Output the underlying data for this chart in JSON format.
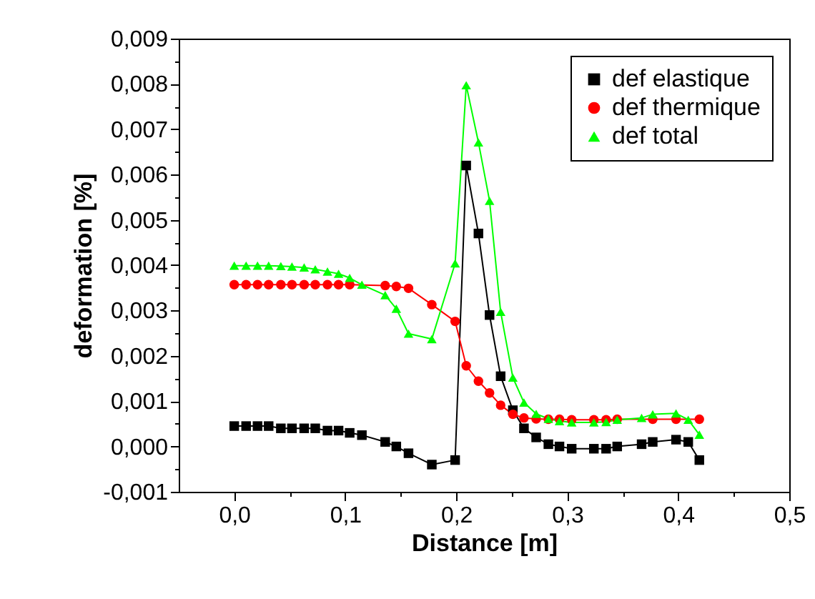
{
  "chart_data": {
    "type": "line",
    "xlabel": "Distance [m]",
    "ylabel": "deformation [%]",
    "xlim": [
      -0.05,
      0.5
    ],
    "ylim": [
      -0.001,
      0.009
    ],
    "xticks": [
      {
        "value": 0,
        "label": "0,0"
      },
      {
        "value": 0.05,
        "label": null
      },
      {
        "value": 0.1,
        "label": "0,1"
      },
      {
        "value": 0.15,
        "label": null
      },
      {
        "value": 0.2,
        "label": "0,2"
      },
      {
        "value": 0.25,
        "label": null
      },
      {
        "value": 0.3,
        "label": "0,3"
      },
      {
        "value": 0.35,
        "label": null
      },
      {
        "value": 0.4,
        "label": "0,4"
      },
      {
        "value": 0.45,
        "label": null
      },
      {
        "value": 0.5,
        "label": "0,5"
      }
    ],
    "yticks": [
      {
        "value": -0.001,
        "label": "-0,001"
      },
      {
        "value": -0.0005,
        "label": null
      },
      {
        "value": 0,
        "label": "0,000"
      },
      {
        "value": 0.0005,
        "label": null
      },
      {
        "value": 0.001,
        "label": "0,001"
      },
      {
        "value": 0.0015,
        "label": null
      },
      {
        "value": 0.002,
        "label": "0,002"
      },
      {
        "value": 0.0025,
        "label": null
      },
      {
        "value": 0.003,
        "label": "0,003"
      },
      {
        "value": 0.0035,
        "label": null
      },
      {
        "value": 0.004,
        "label": "0,004"
      },
      {
        "value": 0.0045,
        "label": null
      },
      {
        "value": 0.005,
        "label": "0,005"
      },
      {
        "value": 0.0055,
        "label": null
      },
      {
        "value": 0.006,
        "label": "0,006"
      },
      {
        "value": 0.0065,
        "label": null
      },
      {
        "value": 0.007,
        "label": "0,007"
      },
      {
        "value": 0.0075,
        "label": null
      },
      {
        "value": 0.008,
        "label": "0,008"
      },
      {
        "value": 0.0085,
        "label": null
      },
      {
        "value": 0.009,
        "label": "0,009"
      }
    ],
    "grid": false,
    "legend": "top right",
    "line_style": "solid",
    "series": [
      {
        "name": "def elastique",
        "color": "#000000",
        "marker": "square",
        "x": [
          0,
          0.0107,
          0.021,
          0.031,
          0.042,
          0.052,
          0.063,
          0.073,
          0.084,
          0.094,
          0.104,
          0.115,
          0.136,
          0.146,
          0.157,
          0.178,
          0.199,
          0.209,
          0.22,
          0.23,
          0.24,
          0.251,
          0.261,
          0.272,
          0.283,
          0.293,
          0.304,
          0.324,
          0.335,
          0.345,
          0.367,
          0.377,
          0.398,
          0.409,
          0.419
        ],
        "values": [
          0.00045,
          0.00045,
          0.00045,
          0.00045,
          0.0004,
          0.0004,
          0.0004,
          0.0004,
          0.00035,
          0.00035,
          0.0003,
          0.00025,
          0.0001,
          0,
          -0.00015,
          -0.0004,
          -0.0003,
          0.0062,
          0.0047,
          0.0029,
          0.00155,
          0.0008,
          0.0004,
          0.0002,
          5e-05,
          0,
          -5e-05,
          -5e-05,
          -5e-05,
          0,
          5e-05,
          0.0001,
          0.00015,
          0.0001,
          -0.0003
        ]
      },
      {
        "name": "def thermique",
        "color": "#ff0000",
        "marker": "circle",
        "x": [
          0,
          0.0107,
          0.021,
          0.031,
          0.042,
          0.052,
          0.063,
          0.073,
          0.084,
          0.094,
          0.104,
          0.136,
          0.146,
          0.157,
          0.178,
          0.199,
          0.209,
          0.22,
          0.23,
          0.24,
          0.251,
          0.261,
          0.272,
          0.283,
          0.293,
          0.304,
          0.324,
          0.335,
          0.345,
          0.377,
          0.398,
          0.419
        ],
        "values": [
          0.00357,
          0.00357,
          0.00357,
          0.00357,
          0.00357,
          0.00357,
          0.00357,
          0.00357,
          0.00357,
          0.00357,
          0.00357,
          0.00355,
          0.00353,
          0.00349,
          0.00313,
          0.00276,
          0.00178,
          0.00144,
          0.00118,
          0.00091,
          0.00071,
          0.00063,
          0.00061,
          0.0006,
          0.0006,
          0.00059,
          0.00059,
          0.00059,
          0.0006,
          0.0006,
          0.0006,
          0.0006
        ]
      },
      {
        "name": "def total",
        "color": "#00ff00",
        "marker": "triangle",
        "x": [
          0,
          0.0107,
          0.021,
          0.031,
          0.042,
          0.052,
          0.063,
          0.073,
          0.084,
          0.094,
          0.104,
          0.115,
          0.136,
          0.146,
          0.157,
          0.178,
          0.199,
          0.209,
          0.22,
          0.23,
          0.24,
          0.251,
          0.261,
          0.272,
          0.283,
          0.293,
          0.304,
          0.324,
          0.335,
          0.345,
          0.367,
          0.377,
          0.398,
          0.409,
          0.419
        ],
        "values": [
          0.00399,
          0.00399,
          0.00399,
          0.00399,
          0.00398,
          0.00397,
          0.00395,
          0.00391,
          0.00386,
          0.00381,
          0.00372,
          0.00357,
          0.00334,
          0.00304,
          0.00249,
          0.00237,
          0.00404,
          0.00797,
          0.00671,
          0.00542,
          0.00297,
          0.00152,
          0.00097,
          0.00072,
          0.00061,
          0.00056,
          0.00053,
          0.00053,
          0.00054,
          0.00059,
          0.00063,
          0.00071,
          0.00073,
          0.00059,
          0.00026
        ]
      }
    ]
  }
}
